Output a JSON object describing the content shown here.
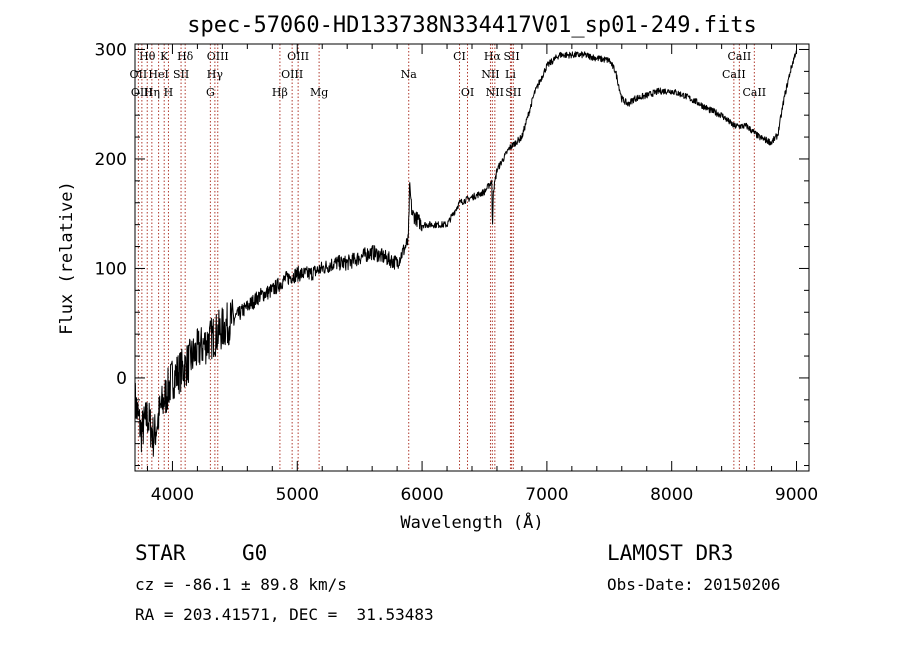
{
  "chart_data": {
    "type": "line",
    "title": "spec-57060-HD133738N334417V01_sp01-249.fits",
    "xlabel": "Wavelength (Å)",
    "ylabel": "Flux (relative)",
    "xlim": [
      3700,
      9100
    ],
    "ylim": [
      -85,
      305
    ],
    "x_ticks": [
      4000,
      5000,
      6000,
      7000,
      8000,
      9000
    ],
    "y_ticks": [
      0,
      100,
      200,
      300
    ],
    "spectrum_anchor_points": {
      "wavelength": [
        3700,
        3750,
        3800,
        3850,
        3900,
        4000,
        4100,
        4200,
        4300,
        4400,
        4500,
        4600,
        4700,
        4800,
        4900,
        5000,
        5100,
        5200,
        5300,
        5400,
        5500,
        5600,
        5700,
        5800,
        5890,
        5900,
        5920,
        6000,
        6100,
        6200,
        6300,
        6400,
        6500,
        6560,
        6563,
        6570,
        6600,
        6700,
        6800,
        6900,
        7000,
        7100,
        7200,
        7300,
        7400,
        7500,
        7550,
        7600,
        7650,
        7700,
        7800,
        7900,
        8000,
        8100,
        8200,
        8300,
        8400,
        8500,
        8600,
        8700,
        8800,
        8850,
        8900,
        8950,
        9000
      ],
      "flux": [
        -20,
        -50,
        -35,
        -55,
        -30,
        0,
        10,
        25,
        35,
        45,
        55,
        65,
        75,
        80,
        90,
        95,
        95,
        100,
        105,
        105,
        110,
        115,
        110,
        105,
        125,
        175,
        150,
        140,
        140,
        140,
        160,
        165,
        170,
        180,
        130,
        170,
        190,
        210,
        220,
        260,
        285,
        295,
        295,
        295,
        292,
        290,
        280,
        255,
        250,
        255,
        258,
        262,
        262,
        258,
        252,
        245,
        240,
        230,
        230,
        220,
        215,
        222,
        255,
        280,
        300
      ]
    },
    "spectral_lines": [
      {
        "label": "Hθ",
        "wavelength": 3798,
        "row": 1
      },
      {
        "label": "K",
        "wavelength": 3934,
        "row": 1
      },
      {
        "label": "Hδ",
        "wavelength": 4102,
        "row": 1
      },
      {
        "label": "OIII",
        "wavelength": 4363,
        "row": 1
      },
      {
        "label": "OIII",
        "wavelength": 5007,
        "row": 1
      },
      {
        "label": "CI",
        "wavelength": 6300,
        "row": 1
      },
      {
        "label": "Hα",
        "wavelength": 6563,
        "row": 1
      },
      {
        "label": "SII",
        "wavelength": 6717,
        "row": 1
      },
      {
        "label": "CaII",
        "wavelength": 8542,
        "row": 1
      },
      {
        "label": "OII",
        "wavelength": 3727,
        "row": 2
      },
      {
        "label": "HeI",
        "wavelength": 3889,
        "row": 2
      },
      {
        "label": "SII",
        "wavelength": 4069,
        "row": 2
      },
      {
        "label": "Hγ",
        "wavelength": 4340,
        "row": 2
      },
      {
        "label": "OIII",
        "wavelength": 4959,
        "row": 2
      },
      {
        "label": "Na",
        "wavelength": 5893,
        "row": 2
      },
      {
        "label": "NII",
        "wavelength": 6548,
        "row": 2
      },
      {
        "label": "Li",
        "wavelength": 6708,
        "row": 2
      },
      {
        "label": "CaII",
        "wavelength": 8498,
        "row": 2
      },
      {
        "label": "OIII",
        "wavelength": 3755,
        "row": 3
      },
      {
        "label": "Hη",
        "wavelength": 3835,
        "row": 3
      },
      {
        "label": "H",
        "wavelength": 3968,
        "row": 3
      },
      {
        "label": "G",
        "wavelength": 4304,
        "row": 3
      },
      {
        "label": "Hβ",
        "wavelength": 4861,
        "row": 3
      },
      {
        "label": "Mg",
        "wavelength": 5175,
        "row": 3
      },
      {
        "label": "OI",
        "wavelength": 6364,
        "row": 3
      },
      {
        "label": "NII",
        "wavelength": 6583,
        "row": 3
      },
      {
        "label": "SII",
        "wavelength": 6731,
        "row": 3
      },
      {
        "label": "CaII",
        "wavelength": 8662,
        "row": 3
      }
    ]
  },
  "info": {
    "object_class": "STAR",
    "subclass": "G0",
    "survey": "LAMOST DR3",
    "redshift": "cz = -86.1 ± 89.8 km/s",
    "obs_date": "Obs-Date: 20150206",
    "coords": "RA = 203.41571, DEC =  31.53483"
  }
}
